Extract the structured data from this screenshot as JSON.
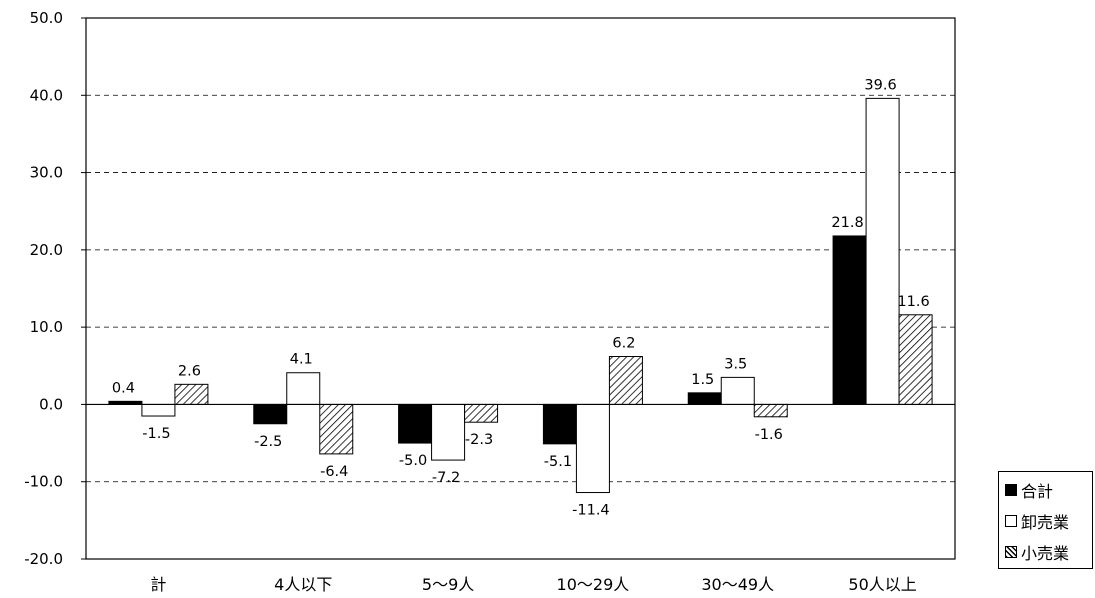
{
  "chart_data": {
    "type": "bar",
    "title": "",
    "xlabel": "",
    "ylabel": "",
    "ylim": [
      -20,
      50
    ],
    "yticks": [
      50,
      40,
      30,
      20,
      10,
      0,
      -10,
      -20
    ],
    "ytick_labels": [
      "50.0",
      "40.0",
      "30.0",
      "20.0",
      "10.0",
      "0.0",
      "-10.0",
      "-20.0"
    ],
    "grid": "dashed horizontal",
    "legend_position": "right-bottom",
    "categories": [
      "計",
      "4人以下",
      "5～9人",
      "10～29人",
      "30～49人",
      "50人以上"
    ],
    "series": [
      {
        "name": "合計",
        "fill": "black",
        "color": "#000000",
        "values": [
          0.4,
          -2.5,
          -5.0,
          -5.1,
          1.5,
          21.8
        ],
        "labels": [
          "0.4",
          "-2.5",
          "-5.0",
          "-5.1",
          "1.5",
          "21.8"
        ]
      },
      {
        "name": "卸売業",
        "fill": "white",
        "color": "#ffffff",
        "values": [
          -1.5,
          4.1,
          -7.2,
          -11.4,
          3.5,
          39.6
        ],
        "labels": [
          "-1.5",
          "4.1",
          "-7.2",
          "-11.4",
          "3.5",
          "39.6"
        ]
      },
      {
        "name": "小売業",
        "fill": "hatched",
        "color": "#c8c8c8",
        "values": [
          2.6,
          -6.4,
          -2.3,
          6.2,
          -1.6,
          11.6
        ],
        "labels": [
          "2.6",
          "-6.4",
          "-2.3",
          "6.2",
          "-1.6",
          "11.6"
        ]
      }
    ]
  },
  "legend": {
    "items": [
      {
        "label": "合計",
        "fill": "black"
      },
      {
        "label": "卸売業",
        "fill": "white"
      },
      {
        "label": "小売業",
        "fill": "hatched"
      }
    ]
  }
}
